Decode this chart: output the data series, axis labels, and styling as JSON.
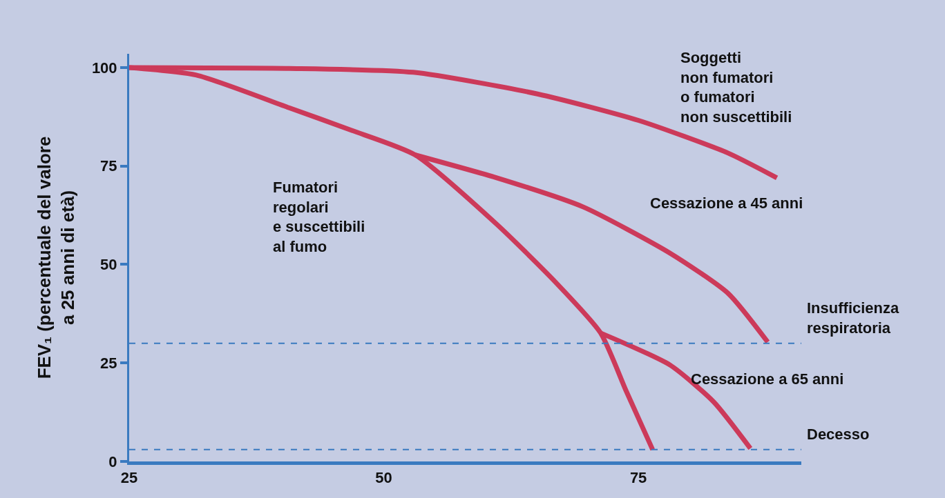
{
  "chart_data": {
    "type": "line",
    "ylabel": "FEV₁ (percentuale del valore\na 25 anni di età)",
    "xlim": [
      25,
      91
    ],
    "ylim": [
      0,
      103.5
    ],
    "xticks": [
      25,
      50,
      75
    ],
    "yticks": [
      0,
      25,
      50,
      75,
      100
    ],
    "grid": false,
    "legend": false,
    "marker": "none",
    "line_style": "solid",
    "series": [
      {
        "name": "Soggetti\nnon fumatori\no fumatori\nnon suscettibili",
        "color": "#cc3a5a",
        "x": [
          25,
          40.7,
          52.9,
          65.1,
          75,
          83.8,
          88.6
        ],
        "values": [
          100,
          99.8,
          98.8,
          93.3,
          86.6,
          78.3,
          72.0
        ]
      },
      {
        "name": "Fumatori\nregolari\ne suscettibili\nal fumo",
        "color": "#cc3a5a",
        "x": [
          25,
          31.6,
          40.7,
          46.8,
          53.1,
          61.1,
          66.8,
          71.3,
          73.8,
          76.4
        ],
        "values": [
          100,
          98.1,
          89.8,
          84.1,
          77.8,
          60.2,
          45.7,
          32.6,
          17.9,
          3.0
        ]
      },
      {
        "name": "Cessazione a 45 anni",
        "color": "#cc3a5a",
        "x": [
          53.1,
          61.1,
          69.6,
          78.1,
          83.8,
          87.7
        ],
        "values": [
          77.8,
          72.0,
          64.6,
          52.9,
          42.7,
          30.3
        ]
      },
      {
        "name": "Cessazione a 65 anni",
        "color": "#cc3a5a",
        "x": [
          71.3,
          78.1,
          82.4,
          86.0
        ],
        "values": [
          32.6,
          24.5,
          15.1,
          3.3
        ]
      }
    ],
    "ref_lines": [
      {
        "axis": "y",
        "value": 30,
        "label": "Insufficienza\nrespiratoria",
        "color": "#3a7ac0",
        "line_style": "dashed"
      },
      {
        "axis": "y",
        "value": 3,
        "label": "Decesso",
        "color": "#3a7ac0",
        "line_style": "dashed"
      }
    ]
  }
}
